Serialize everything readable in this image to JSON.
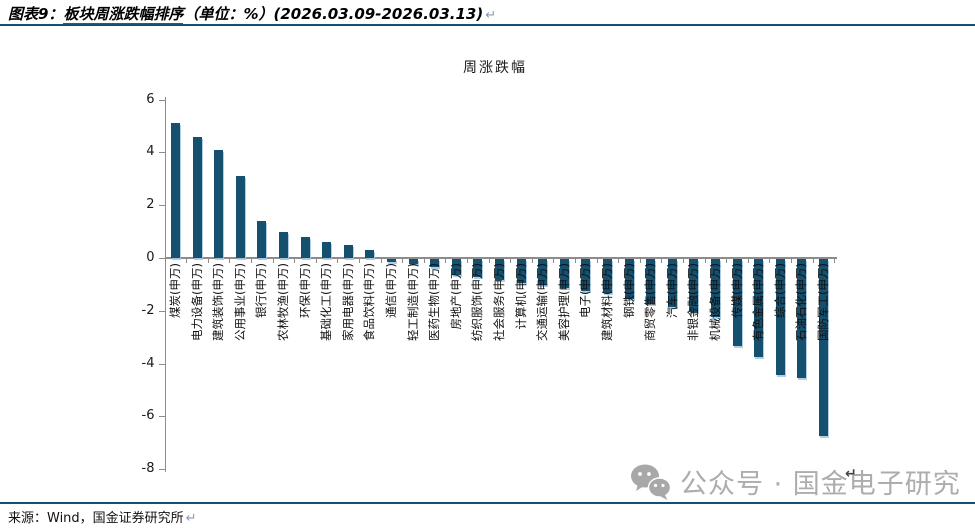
{
  "figure": {
    "caption_prefix": "图表9：",
    "caption_link": "板块周涨跌幅排序",
    "caption_suffix": "（单位：%）(2026.03.09-2026.03.13)",
    "return_mark": "↵"
  },
  "chart_data": {
    "type": "bar",
    "title": "周涨跌幅",
    "categories": [
      "煤炭(申万)",
      "电力设备(申万)",
      "建筑装饰(申万)",
      "公用事业(申万)",
      "银行(申万)",
      "农林牧渔(申万)",
      "环保(申万)",
      "基础化工(申万)",
      "家用电器(申万)",
      "食品饮料(申万)",
      "通信(申万)",
      "轻工制造(申万)",
      "医药生物(申万)",
      "房地产(申万)",
      "纺织服饰(申万)",
      "社会服务(申万)",
      "计算机(申万)",
      "交通运输(申万)",
      "美容护理(申万)",
      "电子(申万)",
      "建筑材料(申万)",
      "钢铁(申万)",
      "商贸零售(申万)",
      "汽车(申万)",
      "非银金融(申万)",
      "机械设备(申万)",
      "传媒(申万)",
      "有色金属(申万)",
      "综合(申万)",
      "石油石化(申万)",
      "国防军工(申万)"
    ],
    "values": [
      5.1,
      4.6,
      4.1,
      3.1,
      1.4,
      1.0,
      0.8,
      0.6,
      0.5,
      0.3,
      -0.1,
      -0.2,
      -0.3,
      -0.6,
      -0.7,
      -0.8,
      -0.9,
      -1.0,
      -1.1,
      -1.2,
      -1.3,
      -1.5,
      -1.7,
      -1.8,
      -2.0,
      -2.2,
      -3.3,
      -3.7,
      -4.4,
      -4.5,
      -6.7
    ],
    "ylim": [
      -8,
      6
    ],
    "yticks": [
      6,
      4,
      2,
      0,
      -2,
      -4,
      -6,
      -8
    ],
    "grid": false,
    "legend": null,
    "bar_color": "#15516f",
    "bar_edge_color": "#a6c9e2",
    "axis_color": "#8c8c8c"
  },
  "source": {
    "text": "来源：Wind，国金证券研究所",
    "return_mark": "↵"
  },
  "watermark": {
    "icon": "wechat-icon",
    "text": "公众号 · 国金电子研究",
    "stray_return": "↵"
  }
}
